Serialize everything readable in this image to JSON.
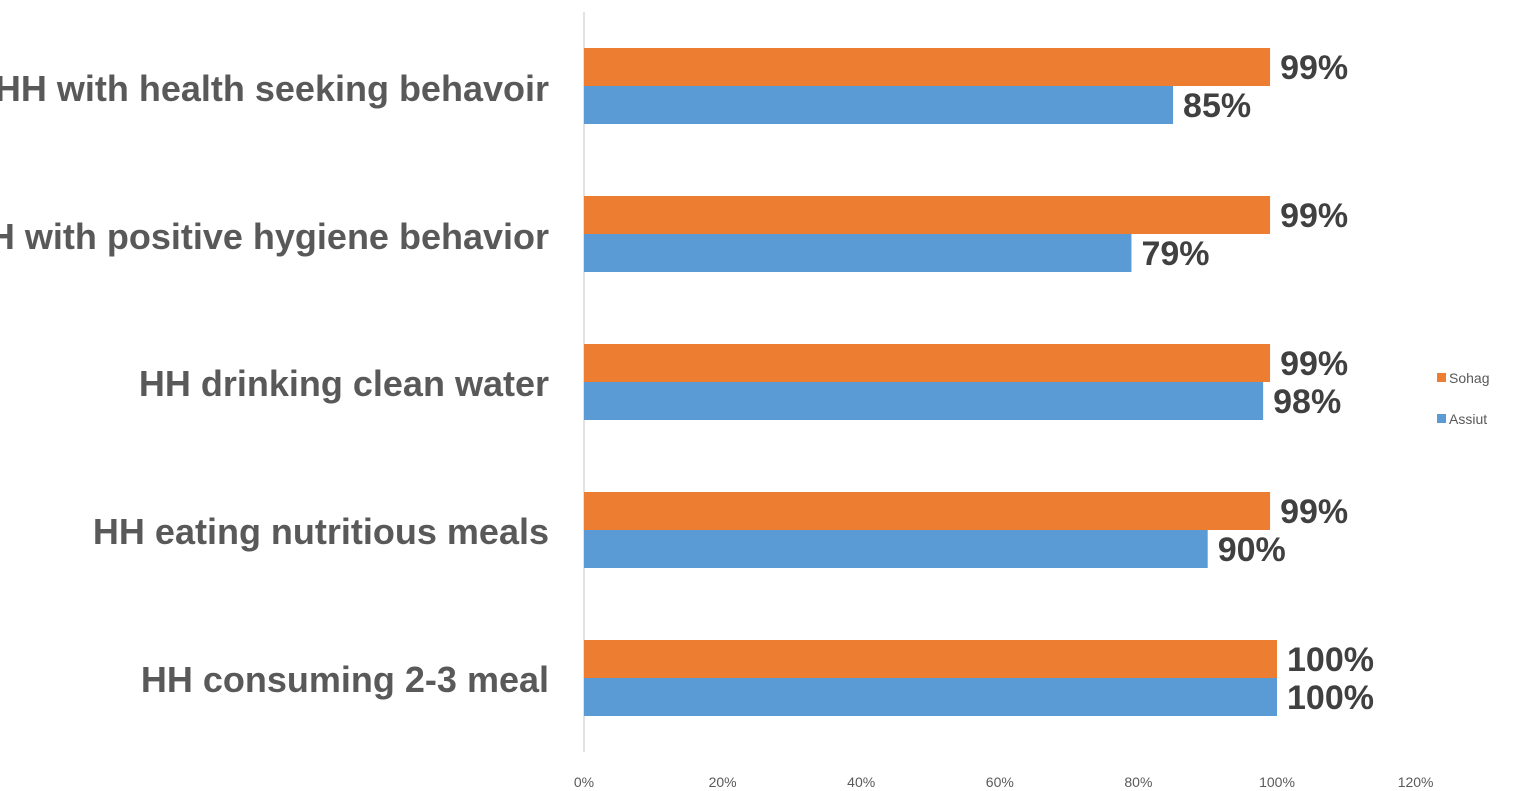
{
  "chart_data": {
    "type": "bar",
    "orientation": "horizontal",
    "categories": [
      "HH with health seeking behavoir",
      "HH with positive hygiene behavior",
      "HH drinking clean water",
      "HH eating nutritious meals",
      "HH consuming 2-3 meal"
    ],
    "series": [
      {
        "name": "Sohag",
        "color": "#ED7D31",
        "values": [
          0.99,
          0.99,
          0.99,
          0.99,
          1.0
        ],
        "labels": [
          "99%",
          "99%",
          "99%",
          "99%",
          "100%"
        ]
      },
      {
        "name": "Assiut",
        "color": "#5B9BD5",
        "values": [
          0.85,
          0.79,
          0.98,
          0.9,
          1.0
        ],
        "labels": [
          "85%",
          "79%",
          "98%",
          "90%",
          "100%"
        ]
      }
    ],
    "xlim": [
      0,
      1.2
    ],
    "xticks": [
      "0%",
      "20%",
      "40%",
      "60%",
      "80%",
      "100%",
      "120%"
    ],
    "grid": false,
    "legend_position": "right",
    "title": "",
    "xlabel": "",
    "ylabel": ""
  }
}
